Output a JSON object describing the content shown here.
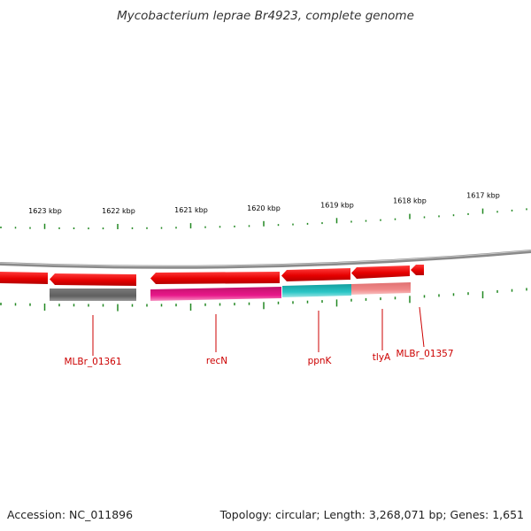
{
  "title": "Mycobacterium leprae Br4923, complete genome",
  "footer": {
    "accession": "Accession: NC_011896",
    "topology": "Topology: circular; Length: 3,268,071 bp; Genes: 1,651"
  },
  "scale_labels": [
    "1623 kbp",
    "1622 kbp",
    "1621 kbp",
    "1620 kbp",
    "1619 kbp",
    "1618 kbp",
    "1617 kbp"
  ],
  "gene_labels": [
    "MLBr_01361",
    "recN",
    "ppnK",
    "tlyA",
    "MLBr_01357"
  ],
  "colors": {
    "backbone": "#888888",
    "gene_arrow": "#ee1111",
    "tick": "#228822",
    "label": "#cc0000",
    "feature_gray": "#666666",
    "feature_magenta": "#e0147a",
    "feature_cyan": "#22bbbb",
    "feature_pink": "#ee8888"
  }
}
